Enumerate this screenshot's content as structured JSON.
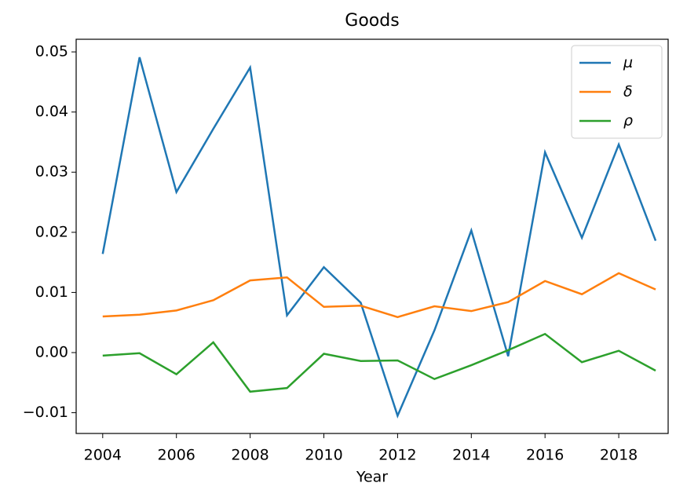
{
  "chart_data": {
    "type": "line",
    "title": "Goods",
    "xlabel": "Year",
    "x": [
      2004,
      2005,
      2006,
      2007,
      2008,
      2009,
      2010,
      2011,
      2012,
      2013,
      2014,
      2015,
      2016,
      2017,
      2018,
      2019
    ],
    "series": [
      {
        "name": "μ",
        "color": "#1f77b4",
        "values": [
          0.0164,
          0.0491,
          0.0267,
          0.0372,
          0.0474,
          0.0062,
          0.0142,
          0.0083,
          -0.0105,
          0.0037,
          0.0203,
          -0.0006,
          0.0333,
          0.0191,
          0.0346,
          0.0186
        ]
      },
      {
        "name": "δ",
        "color": "#ff7f0e",
        "values": [
          0.006,
          0.0063,
          0.007,
          0.0087,
          0.012,
          0.0125,
          0.0076,
          0.0078,
          0.0059,
          0.0077,
          0.0069,
          0.0084,
          0.0119,
          0.0097,
          0.0132,
          0.0105
        ]
      },
      {
        "name": "ρ",
        "color": "#2ca02c",
        "values": [
          -0.0005,
          -0.0001,
          -0.0036,
          0.0017,
          -0.0065,
          -0.0059,
          -0.0002,
          -0.0014,
          -0.0013,
          -0.0044,
          -0.0021,
          0.0004,
          0.0031,
          -0.0016,
          0.0003,
          -0.003
        ]
      }
    ],
    "xlim": [
      2003.28,
      2019.34
    ],
    "xticks": [
      2004,
      2006,
      2008,
      2010,
      2012,
      2014,
      2016,
      2018
    ],
    "ylim": [
      -0.01345,
      0.0521
    ],
    "yticks": [
      {
        "value": -0.01,
        "label": "−0.01"
      },
      {
        "value": 0,
        "label": "0.00"
      },
      0.01,
      0.02,
      0.03,
      0.04,
      0.05
    ],
    "legend": "upper right",
    "grid": false
  }
}
